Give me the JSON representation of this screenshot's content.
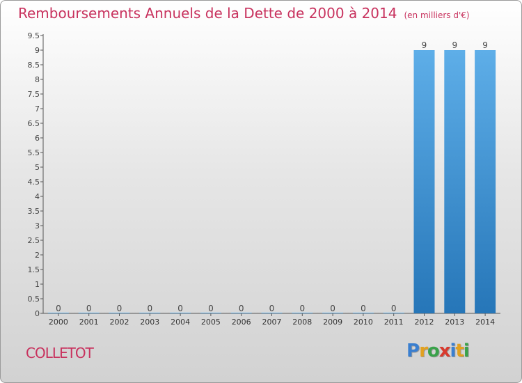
{
  "header": {
    "title": "Remboursements Annuels de la Dette de 2000 à 2014",
    "subtitle": "(en milliers d'€)"
  },
  "footer": {
    "commune": "COLLETOT",
    "logo_letters": [
      {
        "ch": "P",
        "color": "#3a7fd0"
      },
      {
        "ch": "r",
        "color": "#e2a11f"
      },
      {
        "ch": "o",
        "color": "#3aa24a"
      },
      {
        "ch": "x",
        "color": "#d83a2e"
      },
      {
        "ch": "i",
        "color": "#3a7fd0"
      },
      {
        "ch": "t",
        "color": "#e2a11f"
      },
      {
        "ch": "i",
        "color": "#3aa24a"
      }
    ]
  },
  "colors": {
    "title": "#c8325e",
    "bar_top": "#5eaee8",
    "bar_bottom": "#2676b8",
    "axis": "#555555"
  },
  "chart_data": {
    "type": "bar",
    "title": "Remboursements Annuels de la Dette de 2000 à 2014",
    "subtitle": "(en milliers d'€)",
    "categories": [
      "2000",
      "2001",
      "2002",
      "2003",
      "2004",
      "2005",
      "2006",
      "2007",
      "2008",
      "2009",
      "2010",
      "2011",
      "2012",
      "2013",
      "2014"
    ],
    "values": [
      0,
      0,
      0,
      0,
      0,
      0,
      0,
      0,
      0,
      0,
      0,
      0,
      9,
      9,
      9
    ],
    "data_labels": [
      "0",
      "0",
      "0",
      "0",
      "0",
      "0",
      "0",
      "0",
      "0",
      "0",
      "0",
      "0",
      "9",
      "9",
      "9"
    ],
    "yticks": [
      "0",
      "0.5",
      "1",
      "1.5",
      "2",
      "2.5",
      "3",
      "3.5",
      "4",
      "4.5",
      "5",
      "5.5",
      "6",
      "6.5",
      "7",
      "7.5",
      "8",
      "8.5",
      "9",
      "9.5"
    ],
    "ylim": [
      0,
      9.5
    ],
    "grid": false,
    "legend": "none"
  }
}
